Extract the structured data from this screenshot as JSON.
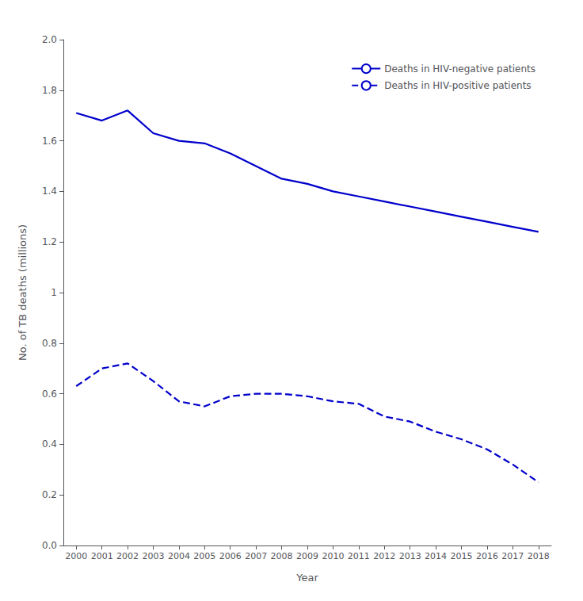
{
  "chart_data": {
    "type": "line",
    "x": [
      2000,
      2001,
      2002,
      2003,
      2004,
      2005,
      2006,
      2007,
      2008,
      2009,
      2010,
      2011,
      2012,
      2013,
      2014,
      2015,
      2016,
      2017,
      2018
    ],
    "series": [
      {
        "name": "Deaths in HIV-negative patients",
        "color": "#0000CC",
        "line_style": "solid",
        "values": [
          1.71,
          1.68,
          1.72,
          1.63,
          1.6,
          1.59,
          1.55,
          1.5,
          1.45,
          1.43,
          1.4,
          1.38,
          1.36,
          1.34,
          1.32,
          1.3,
          1.28,
          1.26,
          1.24
        ]
      },
      {
        "name": "Deaths in HIV-positive patients",
        "color": "#0000CC",
        "line_style": "dashed",
        "values": [
          0.63,
          0.7,
          0.72,
          0.65,
          0.57,
          0.55,
          0.59,
          0.6,
          0.6,
          0.59,
          0.57,
          0.56,
          0.51,
          0.49,
          0.45,
          0.42,
          0.38,
          0.32,
          0.25
        ]
      }
    ],
    "xlabel": "Year",
    "ylabel": "No. of TB deaths (millions)",
    "xlim": [
      1999.5,
      2018.5
    ],
    "xticks": [
      2000,
      2001,
      2002,
      2003,
      2004,
      2005,
      2006,
      2007,
      2008,
      2009,
      2010,
      2011,
      2012,
      2013,
      2014,
      2015,
      2016,
      2017,
      2018
    ],
    "ylim": [
      0,
      2.0
    ],
    "yticks": [
      {
        "value": 0,
        "label": "0.0"
      },
      0.2,
      0.4,
      0.6,
      0.8,
      1,
      1.2,
      1.4,
      1.6,
      1.8,
      {
        "value": 2.0,
        "label": "2.0"
      }
    ],
    "grid": false,
    "legend": "upper right"
  }
}
